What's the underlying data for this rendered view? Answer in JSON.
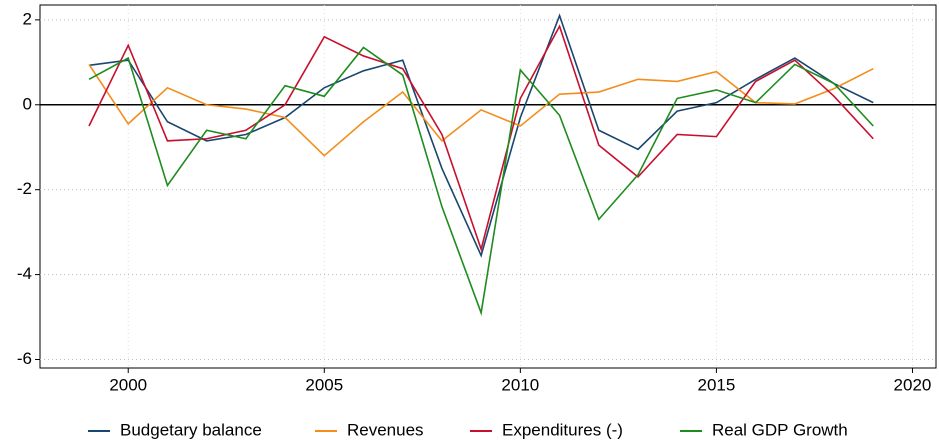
{
  "chart_data": {
    "type": "line",
    "x": [
      1999,
      2000,
      2001,
      2002,
      2003,
      2004,
      2005,
      2006,
      2007,
      2008,
      2009,
      2010,
      2011,
      2012,
      2013,
      2014,
      2015,
      2016,
      2017,
      2018,
      2019
    ],
    "series": [
      {
        "name": "Budgetary balance",
        "color": "#1a476f",
        "values": [
          0.93,
          1.05,
          -0.4,
          -0.85,
          -0.7,
          -0.3,
          0.4,
          0.8,
          1.05,
          -1.5,
          -3.55,
          -0.3,
          2.1,
          -0.6,
          -1.05,
          -0.15,
          0.05,
          0.6,
          1.1,
          0.5,
          0.05
        ]
      },
      {
        "name": "Revenues",
        "color": "#f28e1c",
        "values": [
          0.95,
          -0.45,
          0.4,
          0.0,
          -0.1,
          -0.3,
          -1.2,
          -0.4,
          0.3,
          -0.85,
          -0.12,
          -0.5,
          0.25,
          0.3,
          0.6,
          0.55,
          0.78,
          0.05,
          0.02,
          0.38,
          0.85
        ]
      },
      {
        "name": "Expenditures (-)",
        "color": "#c8102e",
        "values": [
          -0.5,
          1.4,
          -0.85,
          -0.8,
          -0.6,
          0.0,
          1.6,
          1.15,
          0.85,
          -0.7,
          -3.4,
          0.15,
          1.85,
          -0.95,
          -1.7,
          -0.7,
          -0.75,
          0.55,
          1.05,
          0.2,
          -0.8
        ]
      },
      {
        "name": "Real GDP Growth",
        "color": "#1e8c1e",
        "values": [
          0.6,
          1.1,
          -1.9,
          -0.6,
          -0.8,
          0.45,
          0.2,
          1.35,
          0.7,
          -2.4,
          -4.9,
          0.82,
          -0.25,
          -2.7,
          -1.65,
          0.15,
          0.35,
          0.05,
          0.95,
          0.5,
          -0.5
        ]
      }
    ],
    "xlim": [
      1997.75,
      2020.6
    ],
    "xticks": [
      2000,
      2005,
      2010,
      2015,
      2020
    ],
    "ylim": [
      -6.2,
      2.35
    ],
    "yticks": [
      -6,
      -4,
      -2,
      0,
      2
    ],
    "reference_line": 0,
    "grid": true,
    "legend": "bottom"
  }
}
